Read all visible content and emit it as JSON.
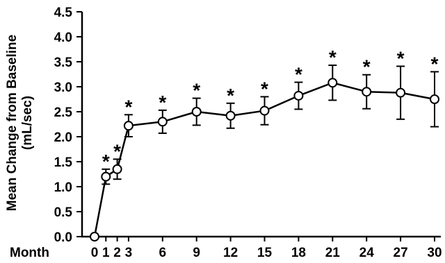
{
  "chart_data": {
    "type": "line",
    "ylabel_line1": "Mean Change from Baseline",
    "ylabel_line2": "(mL/sec)",
    "x_prefix_label": "Month",
    "ylim": [
      0,
      4.5
    ],
    "y_ticks": [
      "0.0",
      "0.5",
      "1.0",
      "1.5",
      "2.0",
      "2.5",
      "3.0",
      "3.5",
      "4.0",
      "4.5"
    ],
    "x_ticks": [
      {
        "value": 0,
        "label": "0"
      },
      {
        "value": 1,
        "label": "1"
      },
      {
        "value": 2,
        "label": "2"
      },
      {
        "value": 3,
        "label": "3"
      },
      {
        "value": 6,
        "label": "6"
      },
      {
        "value": 9,
        "label": "9"
      },
      {
        "value": 12,
        "label": "12"
      },
      {
        "value": 15,
        "label": "15"
      },
      {
        "value": 18,
        "label": "18"
      },
      {
        "value": 21,
        "label": "21"
      },
      {
        "value": 24,
        "label": "24"
      },
      {
        "value": 27,
        "label": "27"
      },
      {
        "value": 30,
        "label": "30"
      }
    ],
    "significance_marker": "*",
    "grid": false,
    "legend": "none",
    "points": [
      {
        "x": 0,
        "y": 0.0,
        "err": 0.0,
        "significant": false
      },
      {
        "x": 1,
        "y": 1.2,
        "err": 0.15,
        "significant": true
      },
      {
        "x": 2,
        "y": 1.35,
        "err": 0.2,
        "significant": true
      },
      {
        "x": 3,
        "y": 2.22,
        "err": 0.22,
        "significant": true
      },
      {
        "x": 6,
        "y": 2.3,
        "err": 0.23,
        "significant": true
      },
      {
        "x": 9,
        "y": 2.5,
        "err": 0.27,
        "significant": true
      },
      {
        "x": 12,
        "y": 2.42,
        "err": 0.25,
        "significant": true
      },
      {
        "x": 15,
        "y": 2.52,
        "err": 0.28,
        "significant": true
      },
      {
        "x": 18,
        "y": 2.82,
        "err": 0.27,
        "significant": true
      },
      {
        "x": 21,
        "y": 3.08,
        "err": 0.35,
        "significant": true
      },
      {
        "x": 24,
        "y": 2.9,
        "err": 0.34,
        "significant": true
      },
      {
        "x": 27,
        "y": 2.88,
        "err": 0.53,
        "significant": true
      },
      {
        "x": 30,
        "y": 2.75,
        "err": 0.55,
        "significant": true
      }
    ],
    "colors": {
      "line": "#000000",
      "marker_fill": "#ffffff",
      "marker_stroke": "#000000"
    }
  }
}
